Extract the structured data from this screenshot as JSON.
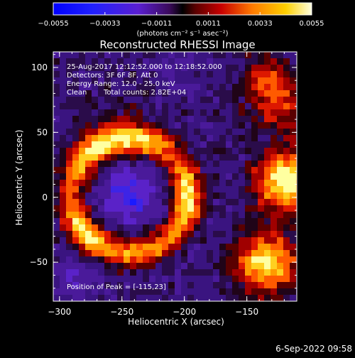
{
  "colorbar": {
    "tick_labels": [
      "-0.0055",
      "-0.0033",
      "-0.0011",
      "0.0011",
      "0.0033",
      "0.0055"
    ],
    "unit_label": "(photons cm⁻² s⁻¹ asec⁻²)",
    "range": [
      -0.0055,
      0.0055
    ]
  },
  "title": "Reconstructed RHESSI Image",
  "info": {
    "time_range": "25-Aug-2017 12:12:52.000 to 12:18:52.000",
    "detectors": "Detectors: 3F 6F 8F, Att 0",
    "energy": "Energy Range: 12.0 - 25.0 keV",
    "algorithm": "Clean",
    "total_counts": "Total counts: 2.82E+04",
    "peak": "Position of Peak = [-115,23]"
  },
  "axes": {
    "xlabel": "Heliocentric X (arcsec)",
    "ylabel": "Heliocentric Y (arcsec)",
    "xlim": [
      -305,
      -110
    ],
    "ylim": [
      -80,
      112
    ],
    "x_ticks": [
      {
        "value": -300,
        "label": "−300"
      },
      {
        "value": -250,
        "label": "−250"
      },
      {
        "value": -200,
        "label": "−200"
      },
      {
        "value": -150,
        "label": "−150"
      }
    ],
    "y_ticks": [
      {
        "value": -50,
        "label": "−50"
      },
      {
        "value": 0,
        "label": "0"
      },
      {
        "value": 50,
        "label": "50"
      },
      {
        "value": 100,
        "label": "100"
      }
    ]
  },
  "timestamp": "6-Sep-2022 09:58"
}
